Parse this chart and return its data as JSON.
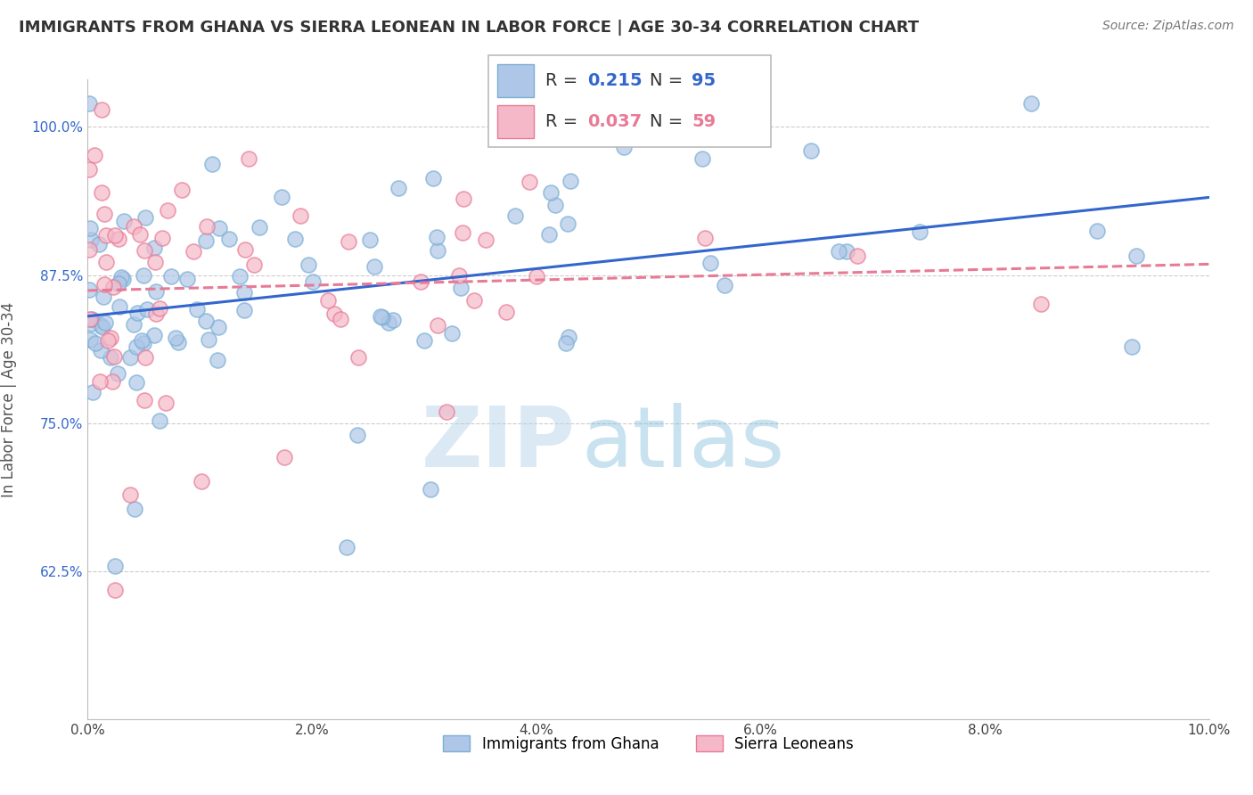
{
  "title": "IMMIGRANTS FROM GHANA VS SIERRA LEONEAN IN LABOR FORCE | AGE 30-34 CORRELATION CHART",
  "source": "Source: ZipAtlas.com",
  "ylabel": "In Labor Force | Age 30-34",
  "xlim": [
    0.0,
    0.1
  ],
  "ylim": [
    0.5,
    1.04
  ],
  "xtick_labels": [
    "0.0%",
    "2.0%",
    "4.0%",
    "6.0%",
    "8.0%",
    "10.0%"
  ],
  "xtick_vals": [
    0.0,
    0.02,
    0.04,
    0.06,
    0.08,
    0.1
  ],
  "ytick_labels": [
    "62.5%",
    "75.0%",
    "87.5%",
    "100.0%"
  ],
  "ytick_vals": [
    0.625,
    0.75,
    0.875,
    1.0
  ],
  "ghana_color": "#aec6e8",
  "ghana_edge": "#7aafd4",
  "sierra_color": "#f5b8c8",
  "sierra_edge": "#e87a96",
  "ghana_R": 0.215,
  "ghana_N": 95,
  "sierra_R": 0.037,
  "sierra_N": 59,
  "ghana_line_color": "#3366cc",
  "sierra_line_color": "#e87a96",
  "watermark_zip": "ZIP",
  "watermark_atlas": "atlas",
  "legend_label_ghana": "Immigrants from Ghana",
  "legend_label_sierra": "Sierra Leoneans",
  "background_color": "#ffffff",
  "grid_color": "#cccccc",
  "title_color": "#333333",
  "source_color": "#777777",
  "ytick_color": "#3366cc"
}
